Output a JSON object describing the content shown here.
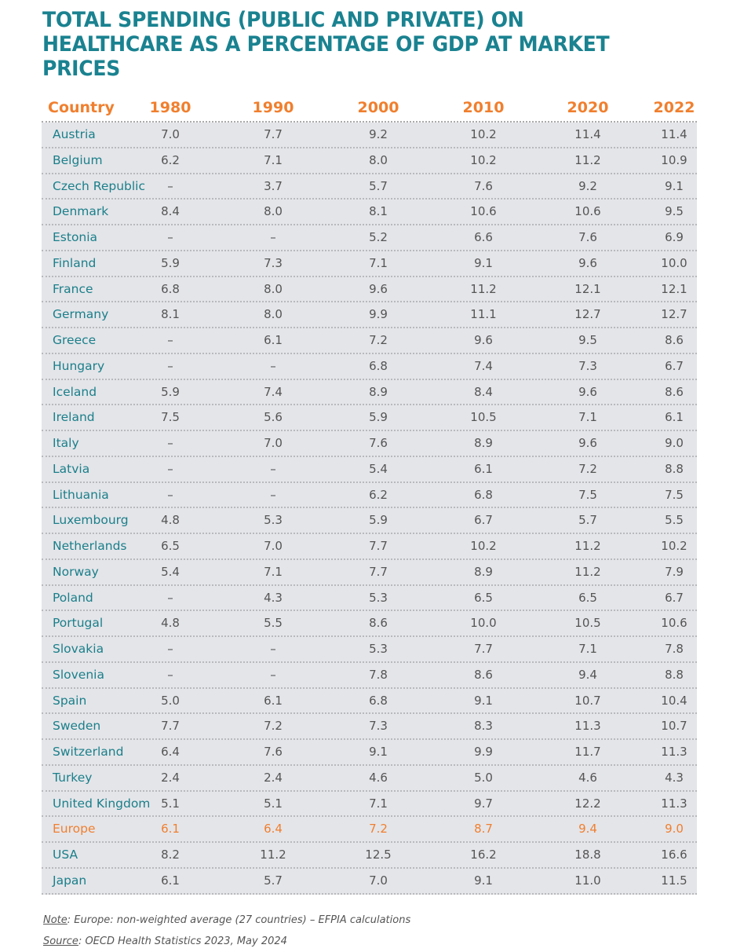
{
  "title": "TOTAL SPENDING (PUBLIC AND PRIVATE) ON HEALTHCARE AS A PERCENTAGE OF GDP AT MARKET PRICES",
  "headers": [
    "Country",
    "1980",
    "1990",
    "2000",
    "2010",
    "2020",
    "2022"
  ],
  "rows": [
    [
      "Austria",
      "7.0",
      "7.7",
      "9.2",
      "10.2",
      "11.4",
      "11.4"
    ],
    [
      "Belgium",
      "6.2",
      "7.1",
      "8.0",
      "10.2",
      "11.2",
      "10.9"
    ],
    [
      "Czech Republic",
      "–",
      "3.7",
      "5.7",
      "7.6",
      "9.2",
      "9.1"
    ],
    [
      "Denmark",
      "8.4",
      "8.0",
      "8.1",
      "10.6",
      "10.6",
      "9.5"
    ],
    [
      "Estonia",
      "–",
      "–",
      "5.2",
      "6.6",
      "7.6",
      "6.9"
    ],
    [
      "Finland",
      "5.9",
      "7.3",
      "7.1",
      "9.1",
      "9.6",
      "10.0"
    ],
    [
      "France",
      "6.8",
      "8.0",
      "9.6",
      "11.2",
      "12.1",
      "12.1"
    ],
    [
      "Germany",
      "8.1",
      "8.0",
      "9.9",
      "11.1",
      "12.7",
      "12.7"
    ],
    [
      "Greece",
      "–",
      "6.1",
      "7.2",
      "9.6",
      "9.5",
      "8.6"
    ],
    [
      "Hungary",
      "–",
      "–",
      "6.8",
      "7.4",
      "7.3",
      "6.7"
    ],
    [
      "Iceland",
      "5.9",
      "7.4",
      "8.9",
      "8.4",
      "9.6",
      "8.6"
    ],
    [
      "Ireland",
      "7.5",
      "5.6",
      "5.9",
      "10.5",
      "7.1",
      "6.1"
    ],
    [
      "Italy",
      "–",
      "7.0",
      "7.6",
      "8.9",
      "9.6",
      "9.0"
    ],
    [
      "Latvia",
      "–",
      "–",
      "5.4",
      "6.1",
      "7.2",
      "8.8"
    ],
    [
      "Lithuania",
      "–",
      "–",
      "6.2",
      "6.8",
      "7.5",
      "7.5"
    ],
    [
      "Luxembourg",
      "4.8",
      "5.3",
      "5.9",
      "6.7",
      "5.7",
      "5.5"
    ],
    [
      "Netherlands",
      "6.5",
      "7.0",
      "7.7",
      "10.2",
      "11.2",
      "10.2"
    ],
    [
      "Norway",
      "5.4",
      "7.1",
      "7.7",
      "8.9",
      "11.2",
      "7.9"
    ],
    [
      "Poland",
      "–",
      "4.3",
      "5.3",
      "6.5",
      "6.5",
      "6.7"
    ],
    [
      "Portugal",
      "4.8",
      "5.5",
      "8.6",
      "10.0",
      "10.5",
      "10.6"
    ],
    [
      "Slovakia",
      "–",
      "–",
      "5.3",
      "7.7",
      "7.1",
      "7.8"
    ],
    [
      "Slovenia",
      "–",
      "–",
      "7.8",
      "8.6",
      "9.4",
      "8.8"
    ],
    [
      "Spain",
      "5.0",
      "6.1",
      "6.8",
      "9.1",
      "10.7",
      "10.4"
    ],
    [
      "Sweden",
      "7.7",
      "7.2",
      "7.3",
      "8.3",
      "11.3",
      "10.7"
    ],
    [
      "Switzerland",
      "6.4",
      "7.6",
      "9.1",
      "9.9",
      "11.7",
      "11.3"
    ],
    [
      "Turkey",
      "2.4",
      "2.4",
      "4.6",
      "5.0",
      "4.6",
      "4.3"
    ],
    [
      "United Kingdom",
      "5.1",
      "5.1",
      "7.1",
      "9.7",
      "12.2",
      "11.3"
    ],
    [
      "Europe",
      "6.1",
      "6.4",
      "7.2",
      "8.7",
      "9.4",
      "9.0"
    ],
    [
      "USA",
      "8.2",
      "11.2",
      "12.5",
      "16.2",
      "18.8",
      "16.6"
    ],
    [
      "Japan",
      "6.1",
      "5.7",
      "7.0",
      "9.1",
      "11.0",
      "11.5"
    ]
  ],
  "highlight_row": "Europe",
  "note_label": "Note",
  "note_text": ": Europe: non-weighted average (27 countries) – EFPIA calculations",
  "source_label": "Source",
  "source_text": ": OECD Health Statistics 2023, May 2024",
  "colors": {
    "title": "#1a8290",
    "accent": "#f07f2e",
    "row_bg": "#e4e5e9"
  }
}
